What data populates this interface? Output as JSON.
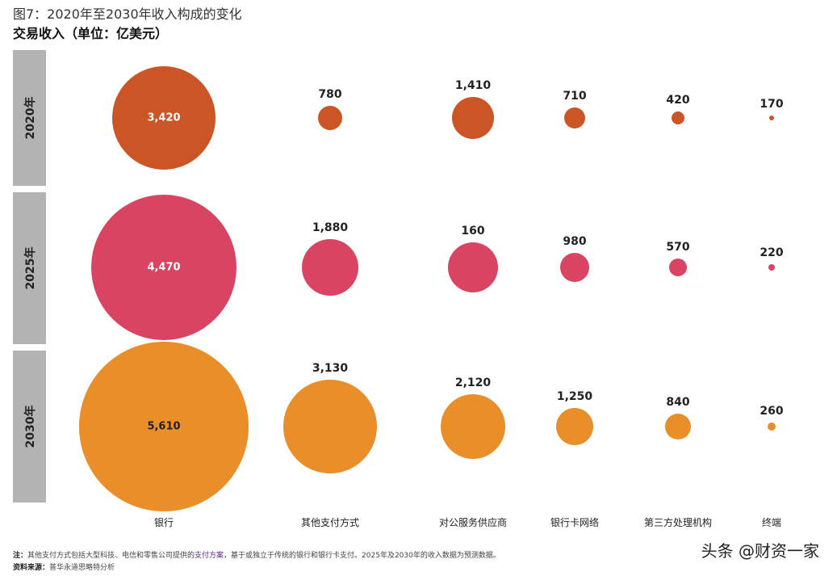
{
  "chart_data": {
    "type": "bubble",
    "title": "图7：2020年至2030年收入构成的变化",
    "subtitle": "交易收入（单位：亿美元）",
    "categories": [
      "银行",
      "其他支付方式",
      "对公服务供应商",
      "银行卡网络",
      "第三方处理机构",
      "终端"
    ],
    "series": [
      {
        "name": "2020年",
        "color": "#cc5526",
        "values": [
          "3,420",
          "780",
          "1,410",
          "710",
          "420",
          "170"
        ]
      },
      {
        "name": "2025年",
        "color": "#d94462",
        "values": [
          "4,470",
          "1,880",
          "160",
          "980",
          "570",
          "220"
        ]
      },
      {
        "name": "2030年",
        "color": "#e98e28",
        "values": [
          "5,610",
          "3,130",
          "2,120",
          "1,250",
          "840",
          "260"
        ]
      }
    ]
  },
  "footnote": {
    "note_label": "注：",
    "note_pre": "其他支付方式包括大型科技、电信和零售公司提供的",
    "note_link": "支付方案",
    "note_post": "，基于或独立于传统的银行和银行卡支付。2025年及2030年的收入数据为预测数据。",
    "source_label": "资料来源：",
    "source": "普华永道思略特分析"
  },
  "watermark": "头条 @财资一家"
}
